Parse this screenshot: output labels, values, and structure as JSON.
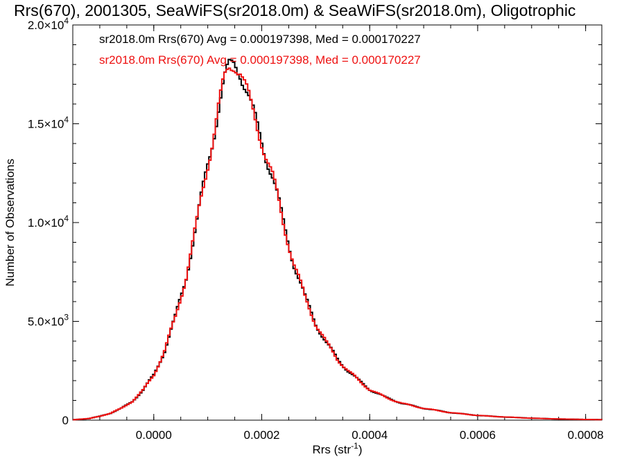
{
  "chart_data": {
    "type": "histogram",
    "title": "Rrs(670), 2001305, SeaWiFS(sr2018.0m) & SeaWiFS(sr2018.0m), Oligotrophic",
    "xlabel": {
      "base": "Rrs (str",
      "sup": "-1",
      "close": ")"
    },
    "ylabel": "Number of Observations",
    "xlim": [
      -0.00015,
      0.00083
    ],
    "ylim": [
      0,
      20000
    ],
    "x_ticks": [
      {
        "value": 0.0,
        "label": "0.0000"
      },
      {
        "value": 0.0002,
        "label": "0.0002"
      },
      {
        "value": 0.0004,
        "label": "0.0004"
      },
      {
        "value": 0.0006,
        "label": "0.0006"
      },
      {
        "value": 0.0008,
        "label": "0.0008"
      }
    ],
    "y_ticks": [
      {
        "value": 0,
        "mant": "0",
        "exp": ""
      },
      {
        "value": 5000,
        "mant": "5.0×10",
        "exp": "3"
      },
      {
        "value": 10000,
        "mant": "1.0×10",
        "exp": "4"
      },
      {
        "value": 15000,
        "mant": "1.5×10",
        "exp": "4"
      },
      {
        "value": 20000,
        "mant": "2.0×10",
        "exp": "4"
      }
    ],
    "annotations": [
      {
        "text": "sr2018.0m Rrs(670) Avg = 0.000197398, Med = 0.000170227",
        "color": "#000000"
      },
      {
        "text": "sr2018.0m Rrs(670) Avg = 0.000197398, Med = 0.000170227",
        "color": "#ee1111"
      }
    ],
    "series": [
      {
        "color": "#000000",
        "points": [
          [
            -0.00015,
            20
          ],
          [
            -0.00012,
            80
          ],
          [
            -0.0001,
            200
          ],
          [
            -8e-05,
            350
          ],
          [
            -6e-05,
            600
          ],
          [
            -4e-05,
            950
          ],
          [
            -2e-05,
            1500
          ],
          [
            0.0,
            2300
          ],
          [
            2e-05,
            3500
          ],
          [
            4e-05,
            5200
          ],
          [
            6e-05,
            7300
          ],
          [
            8e-05,
            10000
          ],
          [
            0.0001,
            13000
          ],
          [
            0.00012,
            15800
          ],
          [
            0.00013,
            17000
          ],
          [
            0.00014,
            17800
          ],
          [
            0.00015,
            18200
          ],
          [
            0.00016,
            17800
          ],
          [
            0.00017,
            16800
          ],
          [
            0.00018,
            15800
          ],
          [
            0.0002,
            14200
          ],
          [
            0.00022,
            12300
          ],
          [
            0.00024,
            10000
          ],
          [
            0.00026,
            7900
          ],
          [
            0.00028,
            6200
          ],
          [
            0.0003,
            4900
          ],
          [
            0.00032,
            3900
          ],
          [
            0.00034,
            3100
          ],
          [
            0.00036,
            2500
          ],
          [
            0.00038,
            2000
          ],
          [
            0.0004,
            1550
          ],
          [
            0.00043,
            1150
          ],
          [
            0.00046,
            850
          ],
          [
            0.0005,
            600
          ],
          [
            0.00055,
            380
          ],
          [
            0.0006,
            240
          ],
          [
            0.00065,
            160
          ],
          [
            0.0007,
            100
          ],
          [
            0.00075,
            60
          ],
          [
            0.0008,
            35
          ],
          [
            0.00083,
            25
          ]
        ]
      },
      {
        "color": "#ee1111",
        "points": [
          [
            -0.00015,
            20
          ],
          [
            -0.00012,
            80
          ],
          [
            -0.0001,
            200
          ],
          [
            -8e-05,
            350
          ],
          [
            -6e-05,
            600
          ],
          [
            -4e-05,
            950
          ],
          [
            -2e-05,
            1500
          ],
          [
            0.0,
            2300
          ],
          [
            2e-05,
            3500
          ],
          [
            4e-05,
            5200
          ],
          [
            6e-05,
            7300
          ],
          [
            8e-05,
            10000
          ],
          [
            0.0001,
            13000
          ],
          [
            0.00012,
            15800
          ],
          [
            0.00013,
            17000
          ],
          [
            0.00014,
            17800
          ],
          [
            0.00015,
            18200
          ],
          [
            0.00016,
            17800
          ],
          [
            0.00017,
            16800
          ],
          [
            0.00018,
            15800
          ],
          [
            0.0002,
            14200
          ],
          [
            0.00022,
            12300
          ],
          [
            0.00024,
            10000
          ],
          [
            0.00026,
            7900
          ],
          [
            0.00028,
            6200
          ],
          [
            0.0003,
            4900
          ],
          [
            0.00032,
            3900
          ],
          [
            0.00034,
            3100
          ],
          [
            0.00036,
            2500
          ],
          [
            0.00038,
            2000
          ],
          [
            0.0004,
            1550
          ],
          [
            0.00043,
            1150
          ],
          [
            0.00046,
            850
          ],
          [
            0.0005,
            600
          ],
          [
            0.00055,
            380
          ],
          [
            0.0006,
            240
          ],
          [
            0.00065,
            160
          ],
          [
            0.0007,
            100
          ],
          [
            0.00075,
            60
          ],
          [
            0.0008,
            35
          ],
          [
            0.00083,
            25
          ]
        ]
      }
    ],
    "grid": false,
    "legend": "top-left"
  }
}
